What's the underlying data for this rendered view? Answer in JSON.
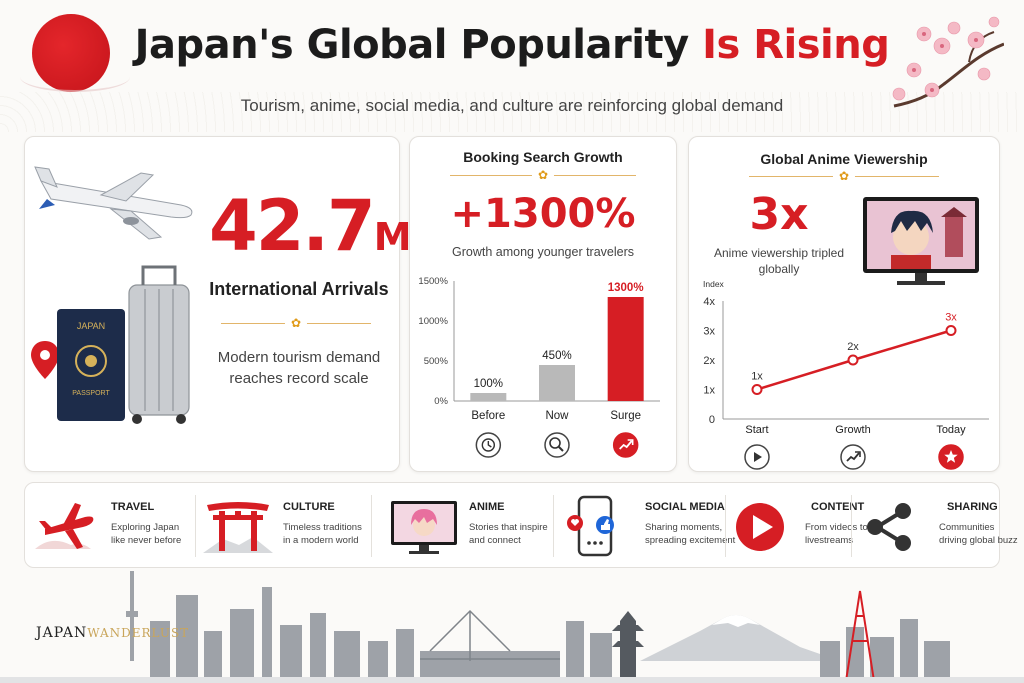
{
  "header": {
    "title_main": "Japan's Global Popularity",
    "title_accent": "Is Rising",
    "subtitle": "Tourism, anime, social media, and culture are reinforcing global demand"
  },
  "arrivals": {
    "value": "42.7",
    "unit": "M",
    "label": "International Arrivals",
    "description_line1": "Modern tourism demand",
    "description_line2": "reaches record scale",
    "passport_text": "JAPAN",
    "passport_label": "PASSPORT"
  },
  "booking": {
    "title": "Booking Search Growth",
    "headline": "+1300%",
    "caption": "Growth among younger travelers",
    "icons": [
      "clock-icon",
      "search-icon",
      "trend-up-icon"
    ]
  },
  "anime": {
    "title": "Global Anime Viewership",
    "headline": "3x",
    "caption_line1": "Anime viewership tripled",
    "caption_line2": "globally",
    "icons": [
      "play-icon",
      "growth-chart-icon",
      "star-icon"
    ]
  },
  "chart_data": [
    {
      "type": "bar",
      "title": "",
      "categories": [
        "Before",
        "Now",
        "Surge"
      ],
      "values": [
        100,
        450,
        1300
      ],
      "data_labels": [
        "100%",
        "450%",
        "1300%"
      ],
      "yticks": [
        "0%",
        "500%",
        "1000%",
        "1500%"
      ],
      "ylim": [
        0,
        1500
      ],
      "grid": false,
      "colors": [
        "#b9b9b9",
        "#b9b9b9",
        "#d61e24"
      ]
    },
    {
      "type": "line",
      "title": "",
      "ylabel": "Index",
      "categories": [
        "Start",
        "Growth",
        "Today"
      ],
      "values": [
        1,
        2,
        3
      ],
      "data_labels": [
        "1x",
        "2x",
        "3x"
      ],
      "yticks": [
        "0",
        "1x",
        "2x",
        "3x",
        "4x"
      ],
      "ylim": [
        0,
        4
      ],
      "grid": false,
      "color": "#d61e24"
    }
  ],
  "strip": [
    {
      "title": "TRAVEL",
      "line1": "Exploring Japan",
      "line2": "like never before",
      "icon": "airplane-icon"
    },
    {
      "title": "CULTURE",
      "line1": "Timeless traditions",
      "line2": "in a modern world",
      "icon": "torii-icon"
    },
    {
      "title": "ANIME",
      "line1": "Stories that inspire",
      "line2": "and connect",
      "icon": "anime-monitor-icon"
    },
    {
      "title": "SOCIAL MEDIA",
      "line1": "Sharing moments,",
      "line2": "spreading excitement",
      "icon": "phone-social-icon"
    },
    {
      "title": "CONTENT",
      "line1": "From videos to",
      "line2": "livestreams",
      "icon": "play-button-icon"
    },
    {
      "title": "SHARING",
      "line1": "Communities",
      "line2": "driving global buzz",
      "icon": "share-icon"
    }
  ],
  "brand": {
    "part1": "JAPAN",
    "part2": "WANDERLUST"
  },
  "colors": {
    "accent": "#d61e24",
    "gold": "#e09b1a",
    "grey_bar": "#b9b9b9"
  }
}
